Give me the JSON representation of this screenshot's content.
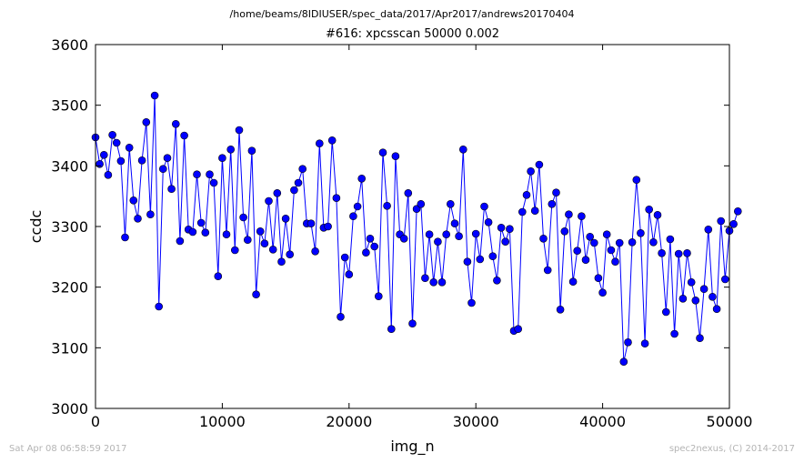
{
  "header": {
    "path": "/home/beams/8IDIUSER/spec_data/2017/Apr2017/andrews20170404"
  },
  "footer": {
    "timestamp": "Sat Apr 08 06:58:59 2017",
    "credit": "spec2nexus, (C) 2014-2017"
  },
  "colors": {
    "series": "#0000ff",
    "marker_edge": "#000000",
    "footer_text": "#b4b4b4"
  },
  "chart_data": {
    "type": "line",
    "title": "#616: xpcsscan 50000 0.002",
    "xlabel": "img_n",
    "ylabel": "ccdc",
    "xlim": [
      0,
      50000
    ],
    "ylim": [
      3000,
      3600
    ],
    "xticks": [
      0,
      10000,
      20000,
      30000,
      40000,
      50000
    ],
    "yticks": [
      3000,
      3100,
      3200,
      3300,
      3400,
      3500,
      3600
    ],
    "grid": false,
    "markers": "circle",
    "x_step": 333.33,
    "values": [
      3447,
      3403,
      3418,
      3385,
      3451,
      3438,
      3408,
      3282,
      3430,
      3343,
      3313,
      3409,
      3472,
      3320,
      3516,
      3168,
      3395,
      3413,
      3362,
      3469,
      3276,
      3450,
      3295,
      3291,
      3386,
      3306,
      3290,
      3386,
      3372,
      3218,
      3413,
      3287,
      3427,
      3261,
      3459,
      3315,
      3278,
      3425,
      3188,
      3292,
      3272,
      3342,
      3262,
      3355,
      3242,
      3313,
      3254,
      3360,
      3372,
      3395,
      3305,
      3305,
      3259,
      3437,
      3298,
      3300,
      3442,
      3347,
      3151,
      3249,
      3221,
      3317,
      3333,
      3379,
      3257,
      3280,
      3267,
      3185,
      3422,
      3334,
      3131,
      3416,
      3287,
      3280,
      3355,
      3140,
      3329,
      3337,
      3215,
      3287,
      3208,
      3275,
      3208,
      3287,
      3337,
      3305,
      3284,
      3427,
      3242,
      3174,
      3288,
      3246,
      3333,
      3307,
      3251,
      3211,
      3298,
      3275,
      3296,
      3128,
      3131,
      3324,
      3352,
      3391,
      3326,
      3402,
      3280,
      3228,
      3337,
      3356,
      3163,
      3292,
      3320,
      3209,
      3260,
      3317,
      3245,
      3283,
      3273,
      3215,
      3191,
      3287,
      3261,
      3242,
      3273,
      3077,
      3109,
      3274,
      3377,
      3289,
      3107,
      3328,
      3274,
      3319,
      3256,
      3159,
      3279,
      3123,
      3255,
      3181,
      3256,
      3208,
      3178,
      3116,
      3197,
      3295,
      3184,
      3164,
      3309,
      3213,
      3293,
      3304,
      3325
    ]
  }
}
